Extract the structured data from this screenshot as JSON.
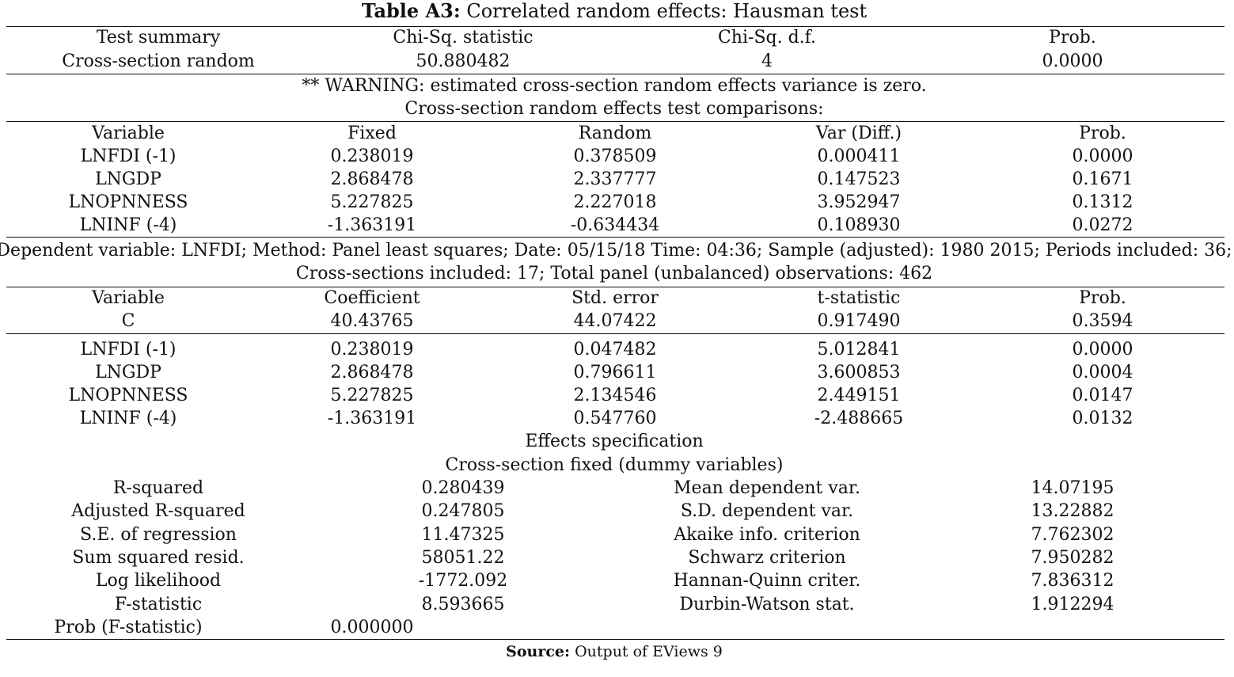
{
  "title": {
    "label": "Table A3:",
    "text": "Correlated random effects: Hausman test"
  },
  "summary": {
    "headers": [
      "Test summary",
      "Chi-Sq. statistic",
      "Chi-Sq. d.f.",
      "Prob."
    ],
    "row": [
      "Cross-section random",
      "50.880482",
      "4",
      "0.0000"
    ]
  },
  "warning": "** WARNING: estimated cross-section random effects variance is zero.",
  "comparisons_title": "Cross-section random effects test comparisons:",
  "comparisons": {
    "headers": [
      "Variable",
      "Fixed",
      "Random",
      "Var (Diff.)",
      "Prob."
    ],
    "rows": [
      [
        "LNFDI (-1)",
        "0.238019",
        "0.378509",
        "0.000411",
        "0.0000"
      ],
      [
        "LNGDP",
        "2.868478",
        "2.337777",
        "0.147523",
        "0.1671"
      ],
      [
        "LNOPNNESS",
        "5.227825",
        "2.227018",
        "3.952947",
        "0.1312"
      ],
      [
        "LNINF (-4)",
        "-1.363191",
        "-0.634434",
        "0.108930",
        "0.0272"
      ]
    ]
  },
  "dependent_info": {
    "line1": "Dependent variable: LNFDI; Method: Panel least squares; Date: 05/15/18   Time: 04:36; Sample (adjusted): 1980 2015; Periods included: 36;",
    "line2": "Cross-sections included: 17; Total panel (unbalanced) observations: 462"
  },
  "regression": {
    "headers": [
      "Variable",
      "Coefficient",
      "Std. error",
      "t-statistic",
      "Prob."
    ],
    "const_row": [
      "C",
      "40.43765",
      "44.07422",
      "0.917490",
      "0.3594"
    ],
    "rows": [
      [
        "LNFDI (-1)",
        "0.238019",
        "0.047482",
        "5.012841",
        "0.0000"
      ],
      [
        "LNGDP",
        "2.868478",
        "0.796611",
        "3.600853",
        "0.0004"
      ],
      [
        "LNOPNNESS",
        "5.227825",
        "2.134546",
        "2.449151",
        "0.0147"
      ],
      [
        "LNINF (-4)",
        "-1.363191",
        "0.547760",
        "-2.488665",
        "0.0132"
      ]
    ]
  },
  "effects_spec": "Effects specification",
  "effects_sub": "Cross-section fixed (dummy variables)",
  "stats": [
    [
      "R-squared",
      "0.280439",
      "Mean dependent var.",
      "14.07195"
    ],
    [
      "Adjusted R-squared",
      "0.247805",
      "S.D. dependent var.",
      "13.22882"
    ],
    [
      "S.E. of regression",
      "11.47325",
      "Akaike info. criterion",
      "7.762302"
    ],
    [
      "Sum squared resid.",
      "58051.22",
      "Schwarz criterion",
      "7.950282"
    ],
    [
      "Log likelihood",
      "-1772.092",
      "Hannan-Quinn criter.",
      "7.836312"
    ],
    [
      "F-statistic",
      "8.593665",
      "Durbin-Watson stat.",
      "1.912294"
    ]
  ],
  "prob_f": [
    "Prob (F-statistic)",
    "0.000000"
  ],
  "source": {
    "label": "Source:",
    "text": "Output of EViews 9"
  }
}
